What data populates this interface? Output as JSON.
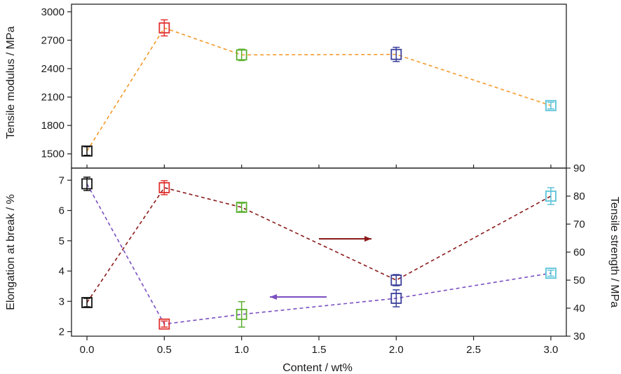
{
  "chart_data": {
    "type": "scatter",
    "xlabel": "Content / wt%",
    "xlim": [
      -0.1,
      3.1
    ],
    "xticks": [
      "0.0",
      "0.5",
      "1.0",
      "1.5",
      "2.0",
      "2.5",
      "3.0"
    ],
    "panels": [
      {
        "name": "top",
        "ylabel": "Tensile modulus / MPa",
        "ylim": [
          1350,
          3080
        ],
        "yticks": [
          "1500",
          "1800",
          "2100",
          "2400",
          "2700",
          "3000"
        ],
        "series": [
          {
            "name": "Tensile modulus",
            "line_color": "#f39a2b",
            "points": [
              {
                "x": 0.0,
                "y": 1530,
                "err": 45,
                "color": "#111111"
              },
              {
                "x": 0.5,
                "y": 2830,
                "err": 85,
                "color": "#e0302e"
              },
              {
                "x": 1.0,
                "y": 2545,
                "err": 60,
                "color": "#5cb030"
              },
              {
                "x": 2.0,
                "y": 2550,
                "err": 75,
                "color": "#3a3f9a"
              },
              {
                "x": 3.0,
                "y": 2010,
                "err": 35,
                "color": "#5cc3d8"
              }
            ]
          }
        ]
      },
      {
        "name": "bottom",
        "ylabel": "Elongation at break / %",
        "ylim": [
          1.85,
          7.4
        ],
        "yticks": [
          "2",
          "3",
          "4",
          "5",
          "6",
          "7"
        ],
        "ylabel_right": "Tensile strength / MPa",
        "ylim_right": [
          30,
          90
        ],
        "yticks_right": [
          "30",
          "40",
          "50",
          "60",
          "70",
          "80",
          "90"
        ],
        "series": [
          {
            "name": "Elongation at break",
            "axis": "left",
            "line_color": "#7a4fc0",
            "points": [
              {
                "x": 0.0,
                "y": 6.88,
                "err": 0.22,
                "color": "#111111"
              },
              {
                "x": 0.5,
                "y": 2.25,
                "err": 0.1,
                "color": "#e0302e"
              },
              {
                "x": 1.0,
                "y": 2.57,
                "err": 0.42,
                "color": "#5cb030"
              },
              {
                "x": 2.0,
                "y": 3.1,
                "err": 0.28,
                "color": "#3a3f9a"
              },
              {
                "x": 3.0,
                "y": 3.93,
                "err": 0.1,
                "color": "#5cc3d8"
              }
            ]
          },
          {
            "name": "Tensile strength",
            "axis": "right",
            "line_color": "#8b1a1a",
            "points": [
              {
                "x": 0.0,
                "y": 42,
                "err": 1.5,
                "color": "#111111"
              },
              {
                "x": 0.5,
                "y": 83,
                "err": 2.5,
                "color": "#e0302e"
              },
              {
                "x": 1.0,
                "y": 76,
                "err": 1.5,
                "color": "#5cb030"
              },
              {
                "x": 2.0,
                "y": 50,
                "err": 2.0,
                "color": "#3a3f9a"
              },
              {
                "x": 3.0,
                "y": 80,
                "err": 3.0,
                "color": "#5cc3d8"
              }
            ]
          }
        ],
        "arrows": [
          {
            "name": "arrow-to-right-axis",
            "direction": "right",
            "color": "#8b1a1a"
          },
          {
            "name": "arrow-to-left-axis",
            "direction": "left",
            "color": "#7a4fc0"
          }
        ]
      }
    ]
  }
}
